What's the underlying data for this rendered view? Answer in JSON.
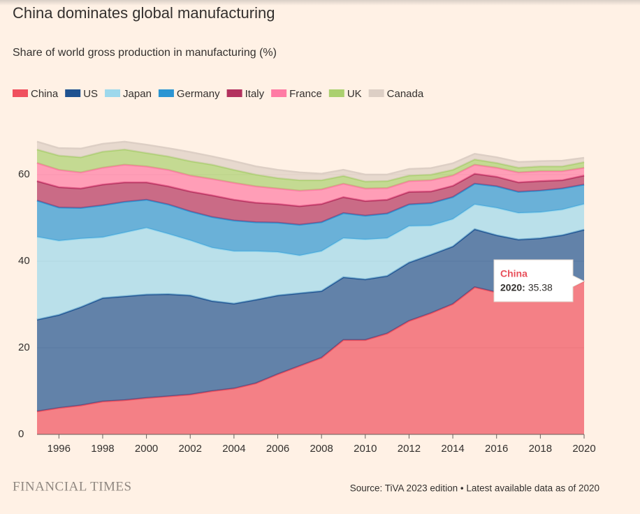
{
  "chart_data": {
    "type": "stacked_area",
    "title": "China dominates global manufacturing",
    "subtitle": "Share of world gross production in manufacturing (%)",
    "source": "Source: TiVA 2023 edition • Latest available data as of 2020",
    "publisher": "FINANCIAL TIMES",
    "x": [
      1995,
      1996,
      1997,
      1998,
      1999,
      2000,
      2001,
      2002,
      2003,
      2004,
      2005,
      2006,
      2007,
      2008,
      2009,
      2010,
      2011,
      2012,
      2013,
      2014,
      2015,
      2016,
      2017,
      2018,
      2019,
      2020
    ],
    "xlim": [
      1995,
      2020
    ],
    "xticks": [
      1996,
      1998,
      2000,
      2002,
      2004,
      2006,
      2008,
      2010,
      2012,
      2014,
      2016,
      2018,
      2020
    ],
    "ylim": [
      0,
      70
    ],
    "yticks": [
      0,
      20,
      40,
      60
    ],
    "grid": true,
    "series": [
      {
        "name": "China",
        "color": "#f0505e",
        "values": [
          5.3,
          6.1,
          6.7,
          7.6,
          7.9,
          8.4,
          8.8,
          9.2,
          10.0,
          10.6,
          11.8,
          13.9,
          15.8,
          17.7,
          21.8,
          21.8,
          23.3,
          26.2,
          28.0,
          30.1,
          34.0,
          32.8,
          31.5,
          32.0,
          33.0,
          35.38
        ]
      },
      {
        "name": "US",
        "color": "#1f5290",
        "values": [
          21.2,
          21.5,
          22.7,
          23.9,
          24.0,
          23.9,
          23.6,
          22.9,
          20.8,
          19.6,
          19.3,
          18.2,
          16.8,
          15.4,
          14.5,
          14.0,
          13.3,
          13.5,
          13.5,
          13.3,
          13.4,
          13.2,
          13.5,
          13.3,
          13.0,
          11.9
        ]
      },
      {
        "name": "Japan",
        "color": "#9dd8ec",
        "values": [
          19.1,
          17.1,
          15.8,
          14.0,
          14.7,
          15.4,
          13.9,
          12.7,
          12.3,
          12.1,
          11.2,
          10.0,
          8.7,
          9.2,
          9.0,
          9.2,
          8.7,
          8.4,
          6.7,
          6.3,
          5.7,
          6.3,
          6.1,
          6.0,
          5.9,
          5.9
        ]
      },
      {
        "name": "Germany",
        "color": "#2b95d3",
        "values": [
          8.4,
          7.7,
          7.1,
          7.4,
          7.1,
          6.5,
          6.8,
          6.7,
          7.1,
          7.1,
          6.7,
          6.8,
          7.1,
          6.7,
          5.8,
          5.5,
          5.7,
          5.0,
          5.2,
          5.1,
          4.8,
          5.0,
          4.9,
          5.0,
          4.9,
          4.5
        ]
      },
      {
        "name": "Italy",
        "color": "#b3325e",
        "values": [
          4.5,
          4.7,
          4.5,
          4.8,
          4.5,
          4.0,
          4.2,
          4.6,
          5.0,
          4.8,
          4.5,
          4.3,
          4.3,
          4.2,
          3.7,
          3.4,
          3.2,
          2.9,
          2.7,
          2.6,
          2.3,
          2.2,
          2.2,
          2.2,
          1.9,
          2.1
        ]
      },
      {
        "name": "France",
        "color": "#ff7ba4",
        "values": [
          4.2,
          4.0,
          3.7,
          3.9,
          4.1,
          3.7,
          3.8,
          3.7,
          3.8,
          3.9,
          3.8,
          3.6,
          3.6,
          3.4,
          3.1,
          2.9,
          2.7,
          2.5,
          2.6,
          2.4,
          2.1,
          2.1,
          2.3,
          2.3,
          2.1,
          1.8
        ]
      },
      {
        "name": "UK",
        "color": "#abd06f",
        "values": [
          3.1,
          3.3,
          3.5,
          3.7,
          3.5,
          3.1,
          3.1,
          3.3,
          3.3,
          3.0,
          2.7,
          2.4,
          2.4,
          2.1,
          1.8,
          1.6,
          1.6,
          1.3,
          1.3,
          1.3,
          1.2,
          1.1,
          1.1,
          1.1,
          1.1,
          1.3
        ]
      },
      {
        "name": "Canada",
        "color": "#ddcfc5",
        "values": [
          1.8,
          1.7,
          2.0,
          1.8,
          1.8,
          1.9,
          1.9,
          2.1,
          1.9,
          2.0,
          1.9,
          1.9,
          1.8,
          1.5,
          1.4,
          1.6,
          1.5,
          1.5,
          1.5,
          1.5,
          1.3,
          1.3,
          1.3,
          1.2,
          1.3,
          1.0
        ]
      }
    ],
    "tooltip": {
      "series": 0,
      "index": 25,
      "label": "2020:"
    }
  }
}
